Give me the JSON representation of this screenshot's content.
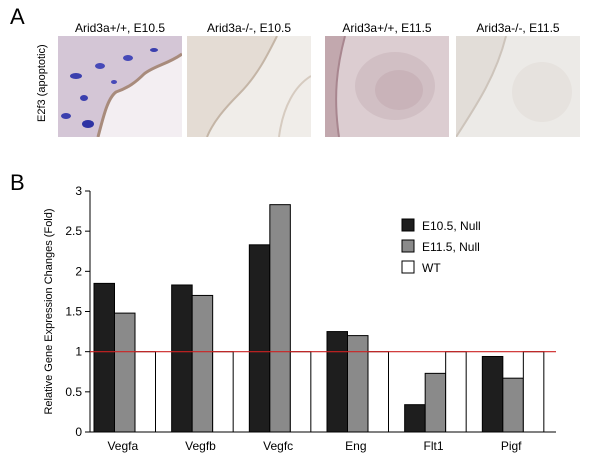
{
  "panel_a": {
    "letter": "A",
    "row_label": "E2f3 (apoptotic)",
    "images": [
      {
        "label": "Arid3a+/+, E10.5",
        "tone": "#cfc2d2",
        "stain": "#3b3fae"
      },
      {
        "label": "Arid3a-/-, E10.5",
        "tone": "#e7e2dc",
        "stain": "#c9bfb4"
      },
      {
        "label": "Arid3a+/+, E11.5",
        "tone": "#d8c4c9",
        "stain": "#b89aa4"
      },
      {
        "label": "Arid3a-/-, E11.5",
        "tone": "#e9e7e4",
        "stain": "#cfc9c2"
      }
    ]
  },
  "panel_b": {
    "letter": "B"
  },
  "chart_data": {
    "type": "bar",
    "title": "",
    "xlabel": "",
    "ylabel": "Relative Gene Expression Changes (Fold)",
    "ylim": [
      0,
      3
    ],
    "yticks": [
      "0",
      "0.5",
      "1",
      "1.5",
      "2",
      "2.5",
      "3"
    ],
    "categories": [
      "Vegfa",
      "Vegfb",
      "Vegfc",
      "Eng",
      "Flt1",
      "Pigf"
    ],
    "series": [
      {
        "name": "E10.5, Null",
        "color": "#1e1e1e",
        "values": [
          1.85,
          1.83,
          2.33,
          1.25,
          0.34,
          0.94
        ]
      },
      {
        "name": "E11.5, Null",
        "color": "#8a8a8a",
        "values": [
          1.48,
          1.7,
          2.83,
          1.2,
          0.73,
          0.67
        ]
      },
      {
        "name": "WT",
        "color": "#ffffff",
        "values": [
          1,
          1,
          1,
          1,
          1,
          1
        ]
      }
    ],
    "reference_line": {
      "value": 1,
      "color": "#cc2222"
    },
    "legend_position": "top-right",
    "grid": false
  }
}
